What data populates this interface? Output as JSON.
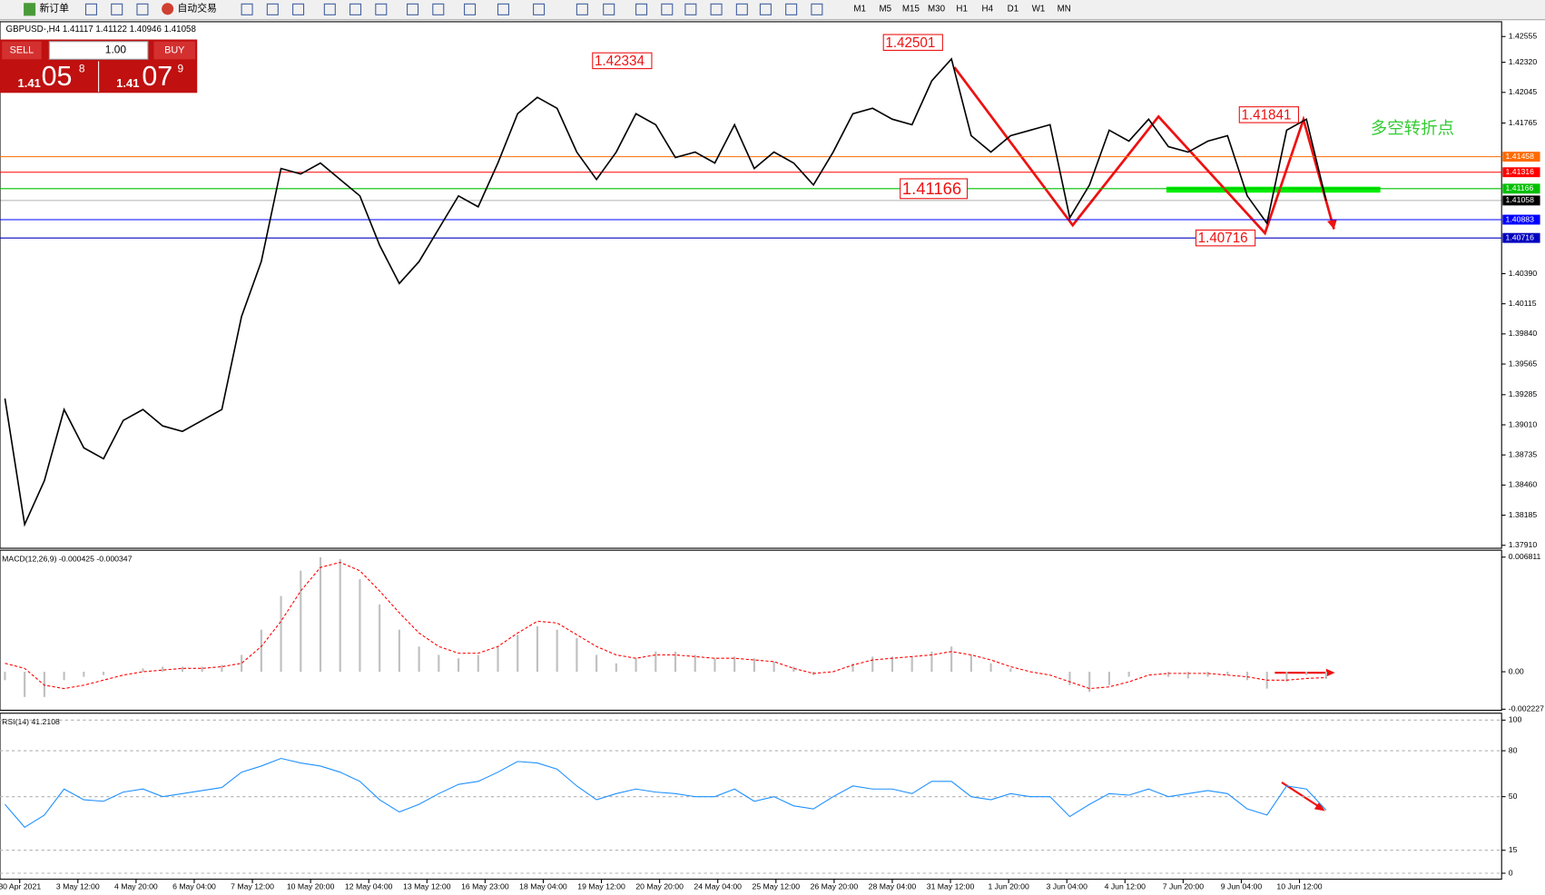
{
  "toolbar": {
    "new_order": "新订单",
    "auto_trade": "自动交易",
    "timeframes": [
      "M1",
      "M5",
      "M15",
      "M30",
      "H1",
      "H4",
      "D1",
      "W1",
      "MN"
    ]
  },
  "symbol_info": "GBPUSD-,H4  1.41117 1.41122 1.40946 1.41058",
  "trade_panel": {
    "sell": "SELL",
    "buy": "BUY",
    "lot": "1.00",
    "sell_price": {
      "big": "1.41",
      "main": "05",
      "small": "8"
    },
    "buy_price": {
      "big": "1.41",
      "main": "07",
      "small": "9"
    }
  },
  "main_chart": {
    "type": "line",
    "ylim": [
      1.37883,
      1.4269
    ],
    "yticks": [
      {
        "value": 1.42555,
        "label": "1.42555"
      },
      {
        "value": 1.4232,
        "label": "1.42320"
      },
      {
        "value": 1.42045,
        "label": "1.42045"
      },
      {
        "value": 1.41765,
        "label": "1.41765"
      },
      {
        "value": 1.4039,
        "label": "1.40390"
      },
      {
        "value": 1.40115,
        "label": "1.40115"
      },
      {
        "value": 1.3984,
        "label": "1.39840"
      },
      {
        "value": 1.39565,
        "label": "1.39565"
      },
      {
        "value": 1.39285,
        "label": "1.39285"
      },
      {
        "value": 1.3901,
        "label": "1.39010"
      },
      {
        "value": 1.38735,
        "label": "1.38735"
      },
      {
        "value": 1.3846,
        "label": "1.38460"
      },
      {
        "value": 1.38185,
        "label": "1.38185"
      },
      {
        "value": 1.3791,
        "label": "1.37910"
      }
    ],
    "x_labels": [
      "30 Apr 2021",
      "3 May 12:00",
      "4 May 20:00",
      "6 May 04:00",
      "7 May 12:00",
      "10 May 20:00",
      "12 May 04:00",
      "13 May 12:00",
      "16 May 23:00",
      "18 May 04:00",
      "19 May 12:00",
      "20 May 20:00",
      "24 May 04:00",
      "25 May 12:00",
      "26 May 20:00",
      "28 May 04:00",
      "31 May 12:00",
      "1 Jun 20:00",
      "3 Jun 04:00",
      "4 Jun 12:00",
      "7 Jun 20:00",
      "9 Jun 04:00",
      "10 Jun 12:00"
    ],
    "closes": [
      1.3925,
      1.381,
      1.385,
      1.3915,
      1.388,
      1.387,
      1.3905,
      1.3915,
      1.39,
      1.3895,
      1.3905,
      1.3915,
      1.4,
      1.405,
      1.4135,
      1.413,
      1.414,
      1.4125,
      1.411,
      1.4065,
      1.403,
      1.405,
      1.408,
      1.411,
      1.41,
      1.414,
      1.4185,
      1.42,
      1.419,
      1.415,
      1.4125,
      1.415,
      1.4185,
      1.4175,
      1.4145,
      1.415,
      1.414,
      1.4175,
      1.4135,
      1.415,
      1.414,
      1.412,
      1.415,
      1.4185,
      1.419,
      1.418,
      1.4175,
      1.4215,
      1.4235,
      1.4165,
      1.415,
      1.4165,
      1.417,
      1.4175,
      1.409,
      1.412,
      1.417,
      1.416,
      1.418,
      1.4155,
      1.415,
      1.416,
      1.4165,
      1.411,
      1.4085,
      1.417,
      1.418,
      1.41058
    ],
    "color": "#000000",
    "levels": [
      {
        "value": 1.41458,
        "label": "1.41458",
        "color": "#ff6a00"
      },
      {
        "value": 1.41316,
        "label": "1.41316",
        "color": "#ff0000"
      },
      {
        "value": 1.41166,
        "label": "1.41166",
        "color": "#00c000"
      },
      {
        "value": 1.41058,
        "label": "1.41058",
        "color": "#000000"
      },
      {
        "value": 1.40883,
        "label": "1.40883",
        "color": "#0000ff"
      },
      {
        "value": 1.40716,
        "label": "1.40716",
        "color": "#0000c0"
      }
    ],
    "annotations": [
      {
        "value": 1.42334,
        "label": "1.42334"
      },
      {
        "value": 1.42501,
        "label": "1.42501"
      },
      {
        "value": 1.41166,
        "label": "1.41166"
      },
      {
        "value": 1.40716,
        "label": "1.40716"
      },
      {
        "value": 1.41841,
        "label": "1.41841"
      }
    ],
    "note": "多空转折点"
  },
  "macd": {
    "type": "bar",
    "title": "MACD(12,26,9) -0.000425 -0.000347",
    "ylim": [
      -0.00229,
      0.00722
    ],
    "yticks": [
      {
        "value": 0.006811,
        "label": "0.006811"
      },
      {
        "value": 0,
        "label": "0.00"
      },
      {
        "value": -0.002227,
        "label": "-0.002227"
      }
    ],
    "histogram": [
      -0.0005,
      -0.0015,
      -0.0015,
      -0.0005,
      -0.0003,
      -0.0002,
      0,
      0.0002,
      0.0003,
      0.0003,
      0.0003,
      0.0004,
      0.001,
      0.0025,
      0.0045,
      0.006,
      0.0068,
      0.0067,
      0.0055,
      0.004,
      0.0025,
      0.0015,
      0.001,
      0.0008,
      0.001,
      0.0015,
      0.0022,
      0.0027,
      0.0025,
      0.002,
      0.001,
      0.0005,
      0.0008,
      0.0012,
      0.0012,
      0.001,
      0.0008,
      0.0009,
      0.0008,
      0.0006,
      0.0003,
      -0.0002,
      0,
      0.0005,
      0.0009,
      0.0009,
      0.0009,
      0.0012,
      0.0015,
      0.001,
      0.0005,
      0.0002,
      0,
      0,
      -0.0008,
      -0.0012,
      -0.0008,
      -0.0003,
      0,
      -0.0003,
      -0.0004,
      -0.0003,
      -0.0002,
      -0.0005,
      -0.001,
      -0.0006,
      -0.0002,
      -0.000425
    ],
    "signal": [
      0.0005,
      0.0002,
      -0.0008,
      -0.001,
      -0.0008,
      -0.0005,
      -0.0002,
      0,
      0.0001,
      0.0002,
      0.0002,
      0.0003,
      0.0005,
      0.0015,
      0.003,
      0.0048,
      0.0062,
      0.0065,
      0.006,
      0.0048,
      0.0035,
      0.0023,
      0.0015,
      0.0011,
      0.0011,
      0.0015,
      0.0023,
      0.003,
      0.0029,
      0.0022,
      0.0015,
      0.001,
      0.0008,
      0.001,
      0.001,
      0.0009,
      0.0008,
      0.0008,
      0.0007,
      0.0006,
      0.0002,
      -0.0001,
      0,
      0.0004,
      0.0007,
      0.0008,
      0.0009,
      0.001,
      0.0012,
      0.001,
      0.0007,
      0.0003,
      0,
      -0.0002,
      -0.0006,
      -0.001,
      -0.0009,
      -0.0006,
      -0.0002,
      -0.0001,
      -0.0001,
      -0.0001,
      -0.0002,
      -0.0003,
      -0.0005,
      -0.0005,
      -0.0004,
      -0.000347
    ],
    "hist_color": "#c0c0c0",
    "signal_color": "#ff0000"
  },
  "rsi": {
    "type": "line",
    "title": "RSI(14) 41.2108",
    "ylim": [
      -3.9,
      104.5
    ],
    "yticks": [
      100,
      80,
      50,
      15,
      0
    ],
    "values": [
      45,
      30,
      38,
      55,
      48,
      47,
      53,
      55,
      50,
      52,
      54,
      56,
      66,
      70,
      75,
      72,
      70,
      66,
      60,
      48,
      40,
      45,
      52,
      58,
      60,
      66,
      73,
      72,
      68,
      57,
      48,
      52,
      55,
      53,
      52,
      50,
      50,
      55,
      47,
      50,
      44,
      42,
      50,
      57,
      55,
      55,
      52,
      60,
      60,
      50,
      48,
      52,
      50,
      50,
      37,
      45,
      52,
      51,
      55,
      50,
      52,
      54,
      52,
      42,
      38,
      57,
      55,
      41.2108
    ],
    "color": "#1e90ff"
  }
}
